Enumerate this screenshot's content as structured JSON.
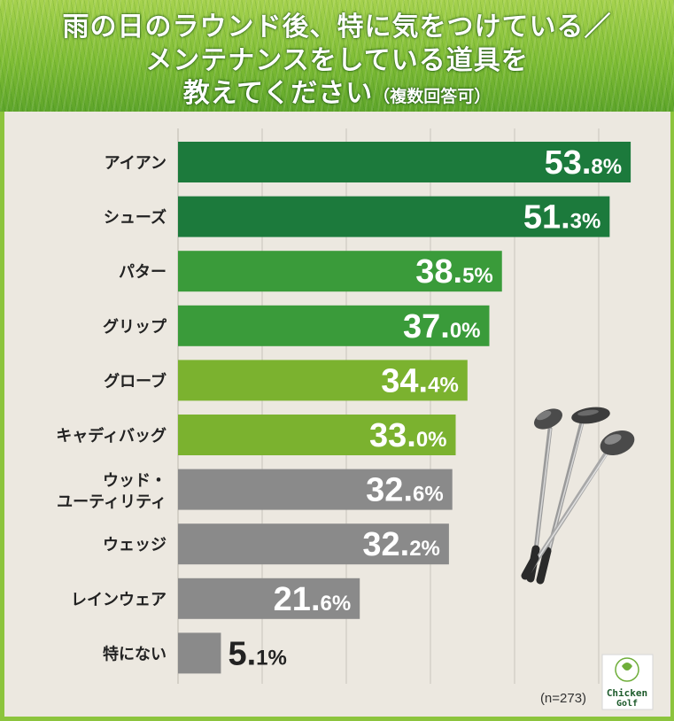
{
  "title": {
    "line1": "雨の日のラウンド後、特に気をつけている／",
    "line2": "メンテナンスをしている道具を",
    "line3_main": "教えてください",
    "line3_sub": "（複数回答可）"
  },
  "note": "(n=273)",
  "logo": {
    "text_line1": "Chicken",
    "text_line2": "Golf"
  },
  "colors": {
    "dark_green": "#1c7a3c",
    "mid_green": "#3a9b3a",
    "light_green": "#7bb22f",
    "gray": "#8a8a8a",
    "background_grass": "#8cc43d",
    "panel": "#ece8e0"
  },
  "chart_data": {
    "type": "bar",
    "orientation": "horizontal",
    "unit": "%",
    "categories": [
      "アイアン",
      "シューズ",
      "パター",
      "グリップ",
      "グローブ",
      "キャディバッグ",
      "ウッド・\nユーティリティ",
      "ウェッジ",
      "レインウェア",
      "特にない"
    ],
    "values": [
      53.8,
      51.3,
      38.5,
      37.0,
      34.4,
      33.0,
      32.6,
      32.2,
      21.6,
      5.1
    ],
    "labels": [
      {
        "int": "53.",
        "dec": "8%"
      },
      {
        "int": "51.",
        "dec": "3%"
      },
      {
        "int": "38.",
        "dec": "5%"
      },
      {
        "int": "37.",
        "dec": "0%"
      },
      {
        "int": "34.",
        "dec": "4%"
      },
      {
        "int": "33.",
        "dec": "0%"
      },
      {
        "int": "32.",
        "dec": "6%"
      },
      {
        "int": "32.",
        "dec": "2%"
      },
      {
        "int": "21.",
        "dec": "6%"
      },
      {
        "int": "5.",
        "dec": "1%"
      }
    ],
    "bar_colors": [
      "#1c7a3c",
      "#1c7a3c",
      "#3a9b3a",
      "#3a9b3a",
      "#7bb22f",
      "#7bb22f",
      "#8a8a8a",
      "#8a8a8a",
      "#8a8a8a",
      "#8a8a8a"
    ],
    "xlim": [
      0,
      55
    ],
    "grid": true
  }
}
